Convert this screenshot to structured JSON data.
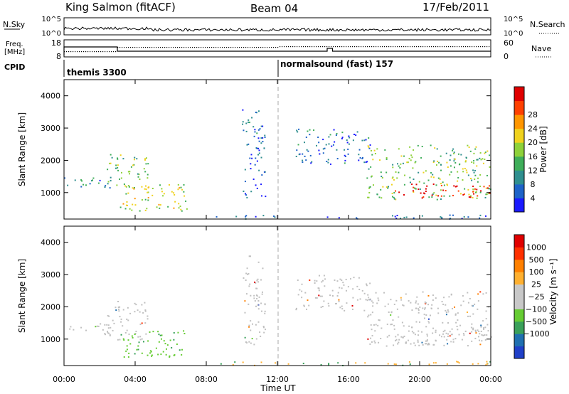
{
  "header": {
    "station": "King Salmon (fitACF)",
    "beam": "Beam 04",
    "date": "17/Feb/2011"
  },
  "sky_panel": {
    "left_label": "N.Sky",
    "right_label": "N.Search",
    "left_ticks": [
      "10^5",
      "10^0"
    ],
    "right_ticks": [
      "10^5",
      "10^0"
    ]
  },
  "freq_panel": {
    "left_label_1": "Freq.",
    "left_label_2": "[MHz]",
    "left_ticks": [
      "18",
      "8"
    ],
    "right_label": "Nave",
    "right_ticks": [
      "60",
      "0"
    ]
  },
  "cpid": {
    "label": "CPID",
    "programs": [
      {
        "name": "themis 3300"
      },
      {
        "name": "normalsound (fast) 157"
      }
    ]
  },
  "x_axis": {
    "label": "Time UT",
    "ticks": [
      "00:00",
      "04:00",
      "08:00",
      "12:00",
      "16:00",
      "20:00",
      "00:00"
    ]
  },
  "chart_data": [
    {
      "type": "heatmap",
      "parameter": "power",
      "ylabel": "Slant Range [km]",
      "yticks": [
        "1000",
        "2000",
        "3000",
        "4000"
      ],
      "ylim": [
        180,
        4500
      ],
      "xlim_hours": [
        0,
        24
      ],
      "colorbar_label": "Power [dB]",
      "colorbar_ticks": [
        "4",
        "8",
        "12",
        "16",
        "20",
        "24",
        "28"
      ],
      "colorbar_colors": [
        "#1a1aff",
        "#1e63c8",
        "#2f8f8f",
        "#3fae5a",
        "#8ed13a",
        "#f0d21e",
        "#ff9600",
        "#ff4000",
        "#e00000"
      ],
      "scatter_regions": [
        {
          "t_start": 0.0,
          "t_end": 2.8,
          "r_start": 1150,
          "r_end": 1500,
          "level": 0.25
        },
        {
          "t_start": 2.4,
          "t_end": 4.8,
          "r_start": 1000,
          "r_end": 2200,
          "level": 0.45
        },
        {
          "t_start": 3.0,
          "t_end": 6.9,
          "r_start": 450,
          "r_end": 1300,
          "level": 0.55
        },
        {
          "t_start": 10.0,
          "t_end": 11.3,
          "r_start": 800,
          "r_end": 3600,
          "level": 0.2
        },
        {
          "t_start": 13.0,
          "t_end": 17.2,
          "r_start": 1900,
          "r_end": 3000,
          "level": 0.2
        },
        {
          "t_start": 17.0,
          "t_end": 24.0,
          "r_start": 800,
          "r_end": 2500,
          "level": 0.45
        },
        {
          "t_start": 18.6,
          "t_end": 24.0,
          "r_start": 850,
          "r_end": 1300,
          "level": 0.95
        },
        {
          "t_start": 8.5,
          "t_end": 24.0,
          "r_start": 200,
          "r_end": 330,
          "level": 0.15
        }
      ]
    },
    {
      "type": "heatmap",
      "parameter": "velocity",
      "ylabel": "Slant Range [km]",
      "yticks": [
        "1000",
        "2000",
        "3000",
        "4000"
      ],
      "ylim": [
        180,
        4500
      ],
      "xlim_hours": [
        0,
        24
      ],
      "colorbar_label": "Velocity [m s⁻¹]",
      "colorbar_ticks": [
        "1000",
        "500",
        "100",
        "25",
        "−25",
        "−100",
        "−500",
        "−1000"
      ],
      "colorbar_colors": [
        "#2040c8",
        "#2070b0",
        "#3aa05a",
        "#66cc33",
        "#c8c8c8",
        "#c8c8c8",
        "#ffb030",
        "#ff8000",
        "#ff3000",
        "#e00000"
      ],
      "ground_scatter_color": "#c0c0c0"
    }
  ]
}
